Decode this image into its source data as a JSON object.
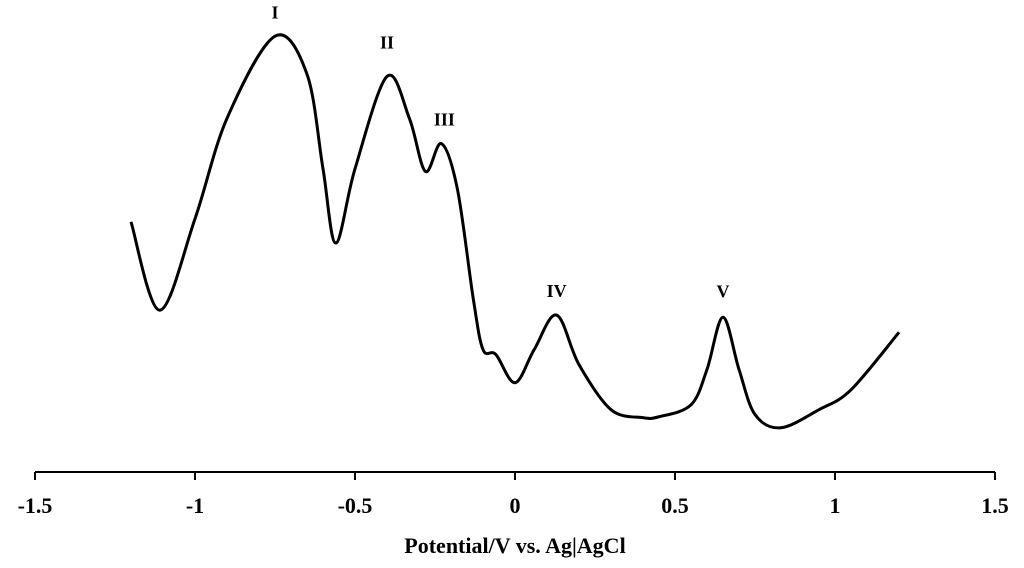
{
  "chart_data": {
    "type": "line",
    "x_label": "Potential/V vs. Ag|AgCl",
    "x": [
      -1.2,
      -1.11,
      -1.0,
      -0.9,
      -0.75,
      -0.65,
      -0.6,
      -0.56,
      -0.5,
      -0.4,
      -0.33,
      -0.28,
      -0.23,
      -0.18,
      -0.13,
      -0.1,
      -0.06,
      0,
      0.06,
      0.13,
      0.2,
      0.3,
      0.4,
      0.45,
      0.55,
      0.6,
      0.65,
      0.7,
      0.75,
      0.83,
      0.95,
      1.05,
      1.2
    ],
    "series": [
      {
        "color": "#000000",
        "values": [
          56.6,
          36.6,
          57.3,
          80,
          98.6,
          90,
          68.6,
          51.8,
          68.6,
          89.5,
          80,
          68,
          74.3,
          64,
          39,
          27.7,
          26.6,
          20.2,
          27.7,
          35.5,
          24.3,
          14.1,
          12.3,
          12.5,
          15.2,
          23.2,
          35,
          23.2,
          13,
          10,
          14.1,
          18.6,
          31.6
        ]
      }
    ],
    "annotations": [
      "I",
      "II",
      "III",
      "IV",
      "V"
    ],
    "xlim": [
      -1.5,
      1.5
    ],
    "xticks": [
      -1.5,
      -1,
      -0.5,
      0,
      0.5,
      1,
      1.5
    ],
    "ylim": [
      0,
      100
    ]
  }
}
